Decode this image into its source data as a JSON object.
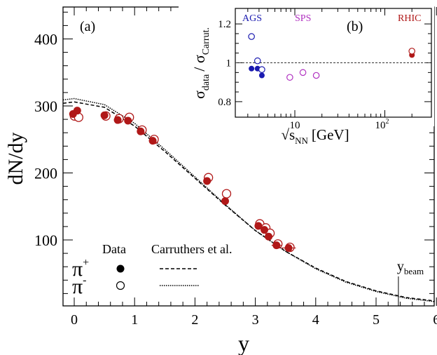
{
  "chart_data": [
    {
      "type": "scatter",
      "panel_label": "(a)",
      "xlabel": "y",
      "ylabel": "dN/dy",
      "xlim": [
        -0.2,
        6.1
      ],
      "ylim": [
        12,
        440
      ],
      "x_ticks": [
        "0",
        "1",
        "2",
        "3",
        "4",
        "5",
        "6"
      ],
      "y_ticks": [
        "100",
        "200",
        "300",
        "400"
      ],
      "grid": false,
      "legend": {
        "position": "bottom-left",
        "data_header": "Data",
        "model_header": "Carruthers et al.",
        "pi_plus_label": "π",
        "pi_plus_sup": "+",
        "pi_minus_label": "π",
        "pi_minus_sup": "-"
      },
      "annotation": {
        "text": "y",
        "sub": "beam",
        "x": 5.37
      },
      "series": [
        {
          "name": "π+",
          "marker": "filled-circle",
          "color": "#b01818",
          "x": [
            -0.02,
            0.05,
            0.5,
            0.72,
            0.89,
            1.1,
            1.3,
            2.2,
            2.5,
            3.05,
            3.15,
            3.22,
            3.35,
            3.55
          ],
          "y": [
            288,
            293,
            286,
            279,
            278,
            262,
            248,
            188,
            158,
            121,
            115,
            105,
            92,
            88
          ],
          "xerr": [
            0,
            0,
            0,
            0,
            0,
            0,
            0,
            0,
            0,
            0,
            0,
            0,
            0.08,
            0.12
          ]
        },
        {
          "name": "π-",
          "marker": "open-circle",
          "color": "#b01818",
          "x": [
            -0.02,
            0.05,
            0.5,
            0.72,
            0.89,
            1.1,
            1.3,
            2.2,
            2.5,
            3.05,
            3.15,
            3.22,
            3.35,
            3.55
          ],
          "y": [
            285,
            283,
            285,
            281,
            283,
            264,
            250,
            193,
            169,
            124,
            118,
            110,
            94,
            89
          ]
        },
        {
          "name": "Carruthers et al. π+",
          "style": "dashed",
          "x": [
            -0.2,
            0,
            0.5,
            1,
            1.5,
            2,
            2.5,
            3,
            3.5,
            4,
            4.5,
            5,
            5.5,
            6,
            6.1
          ],
          "y": [
            304,
            306,
            298,
            270,
            232,
            192,
            152,
            114,
            83,
            58,
            38,
            24,
            14,
            9,
            8
          ]
        },
        {
          "name": "Carruthers et al. π-",
          "style": "dotted",
          "x": [
            -0.2,
            0,
            0.5,
            1,
            1.5,
            2,
            2.5,
            3,
            3.5,
            4,
            4.5,
            5,
            5.5,
            6,
            6.1
          ],
          "y": [
            309,
            311,
            302,
            274,
            235,
            194,
            153,
            114,
            83,
            57,
            37,
            23,
            13,
            8,
            7
          ]
        }
      ]
    },
    {
      "type": "scatter",
      "panel_label": "(b)",
      "xlabel_text": "√s",
      "xlabel_sub": "NN",
      "xlabel_unit": "[GeV]",
      "ylabel_main": "σ",
      "ylabel_sub1": "data",
      "ylabel_mid": "/ σ",
      "ylabel_sub2": "Carrut.",
      "x_scale": "log",
      "xlim": [
        2.6,
        240
      ],
      "ylim": [
        0.78,
        1.26
      ],
      "x_ticks": [
        "10",
        "10"
      ],
      "x_tick_exponent": "2",
      "y_ticks": [
        "0.8",
        "1",
        "1.2"
      ],
      "reference_line": 1.0,
      "group_labels": [
        {
          "text": "AGS",
          "color": "#1a1ab0"
        },
        {
          "text": "SPS",
          "color": "#b030c0"
        },
        {
          "text": "RHIC",
          "color": "#b01818"
        }
      ],
      "series": [
        {
          "name": "AGS π+",
          "marker": "filled-circle",
          "color": "#1a1ab0",
          "x": [
            3.3,
            3.85,
            4.3
          ],
          "y": [
            0.97,
            0.97,
            0.935
          ]
        },
        {
          "name": "AGS π-",
          "marker": "open-circle",
          "color": "#1a1ab0",
          "x": [
            3.3,
            3.85,
            4.3
          ],
          "y": [
            1.135,
            1.01,
            0.965
          ]
        },
        {
          "name": "SPS π-",
          "marker": "open-circle",
          "color": "#b030c0",
          "x": [
            8.8,
            12.3,
            17.3
          ],
          "y": [
            0.925,
            0.95,
            0.935
          ]
        },
        {
          "name": "RHIC π+",
          "marker": "filled-circle",
          "color": "#b01818",
          "x": [
            200
          ],
          "y": [
            1.04
          ]
        },
        {
          "name": "RHIC π-",
          "marker": "open-circle",
          "color": "#b01818",
          "x": [
            200
          ],
          "y": [
            1.06
          ]
        }
      ]
    }
  ]
}
